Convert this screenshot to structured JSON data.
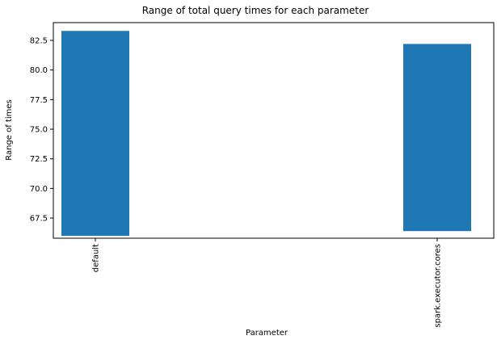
{
  "chart_data": {
    "type": "bar",
    "title": "Range of total query times for each parameter",
    "xlabel": "Parameter",
    "ylabel": "Range of times",
    "categories": [
      "default",
      "spark.executor.cores"
    ],
    "bars": [
      {
        "category": "default",
        "low": 66.0,
        "high": 83.3
      },
      {
        "category": "spark.executor.cores",
        "low": 66.4,
        "high": 82.2
      }
    ],
    "ylim": [
      65.8,
      84.0
    ],
    "yticks": [
      67.5,
      70.0,
      72.5,
      75.0,
      77.5,
      80.0,
      82.5
    ],
    "ytick_labels": [
      "67.5",
      "70.0",
      "72.5",
      "75.0",
      "77.5",
      "80.0",
      "82.5"
    ],
    "bar_color": "#1f77b4",
    "grid": false
  }
}
